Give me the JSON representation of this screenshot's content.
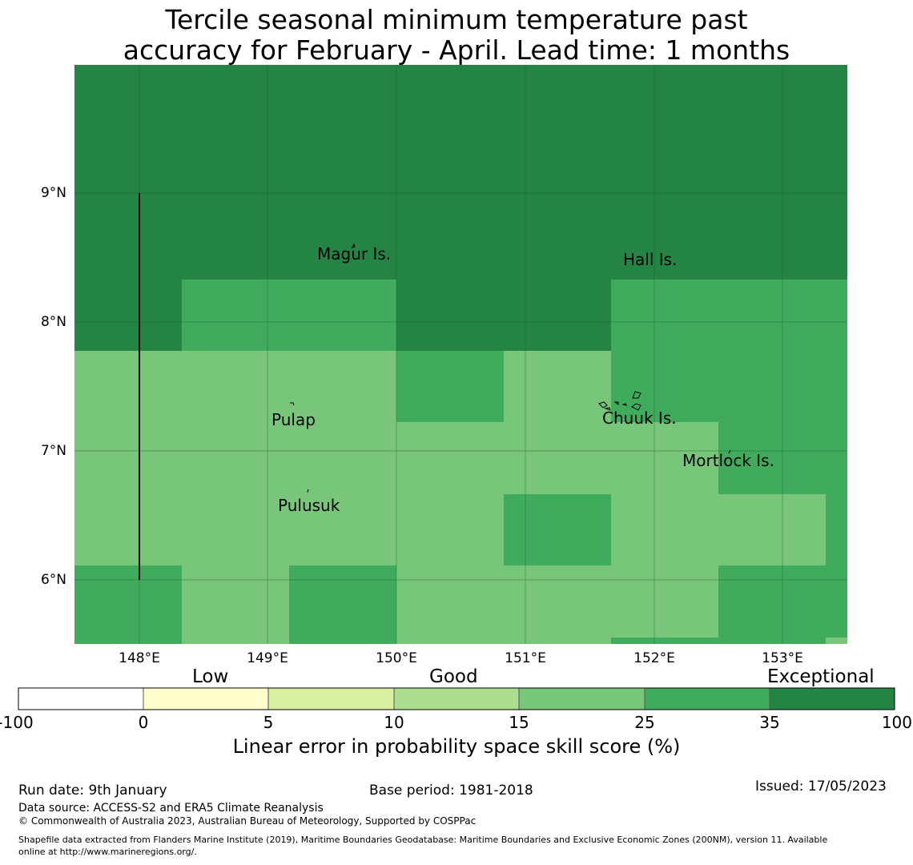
{
  "title": {
    "line1": "Tercile seasonal minimum temperature past",
    "line2": "accuracy for February - April. Lead time: 1 months"
  },
  "map": {
    "lat_axis": [
      "9°N",
      "8°N",
      "7°N",
      "6°N"
    ],
    "lon_axis": [
      "148°E",
      "149°E",
      "150°E",
      "151°E",
      "152°E",
      "153°E"
    ],
    "places": [
      "Magur Is.",
      "Hall Is.",
      "Pulap",
      "Chuuk Is.",
      "Mortlock Is.",
      "Pulusuk"
    ],
    "colors": {
      "exceptional": "#238443",
      "band_25_35": "#41ab5d",
      "band_15_25": "#78c679"
    }
  },
  "colorbar": {
    "categories": [
      "Low",
      "Good",
      "Exceptional"
    ],
    "ticks": [
      "-100",
      "0",
      "5",
      "10",
      "15",
      "25",
      "35",
      "100"
    ],
    "colors": [
      "#ffffff",
      "#ffffcc",
      "#d9f0a3",
      "#addd8e",
      "#78c679",
      "#41ab5d",
      "#238443"
    ],
    "label": "Linear error in probability space skill score (%)"
  },
  "footer": {
    "run_date": "Run date: 9th January",
    "base_period": "Base period: 1981-2018",
    "issued": "Issued: 17/05/2023",
    "data_source": "Data source: ACCESS-S2 and ERA5 Climate Reanalysis",
    "copyright": "© Commonwealth of Australia 2023, Australian Bureau of Meteorology, Supported by COSPPac",
    "shapefile_line1": "Shapefile data extracted from Flanders Marine Institute (2019), Maritime Boundaries Geodatabase: Maritime Boundaries and Exclusive Economic Zones (200NM), version 11. Available",
    "shapefile_line2": "online at http://www.marineregions.org/."
  }
}
